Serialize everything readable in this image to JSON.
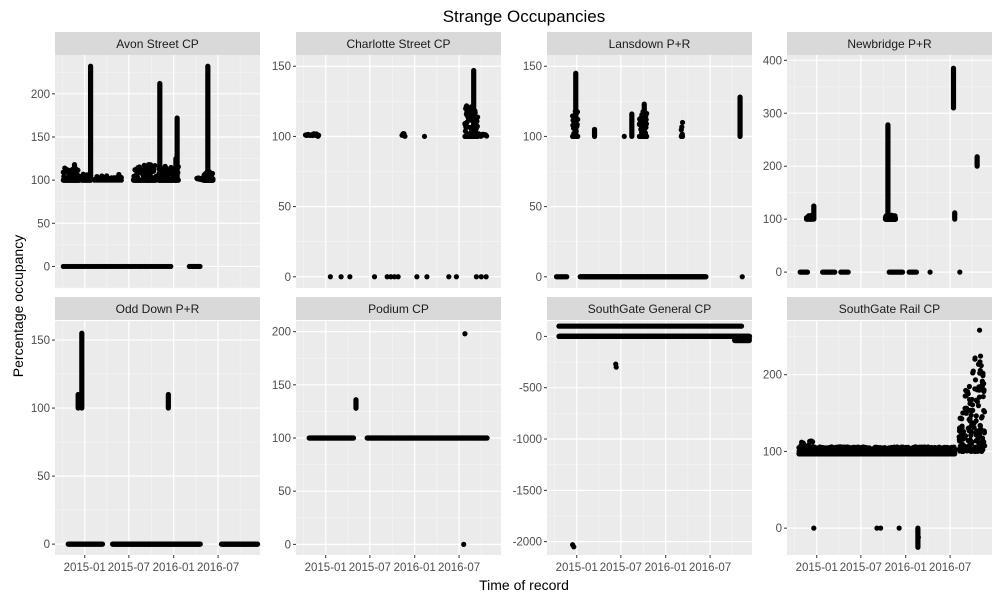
{
  "chart_data": {
    "type": "scatter",
    "title": "Strange Occupancies",
    "xlabel": "Time of record",
    "ylabel": "Percentage occupancy",
    "x_tick_labels": [
      "2015-01",
      "2015-07",
      "2016-01",
      "2016-07"
    ],
    "x_tick_values": [
      "2015-01-01",
      "2015-07-01",
      "2016-01-01",
      "2016-07-01"
    ],
    "xlim": [
      "2014-09-01",
      "2016-12-20"
    ],
    "grid": true,
    "facet_rows": 2,
    "facet_cols": 4,
    "colors": {
      "panel_bg": "#EBEBEB",
      "strip_bg": "#D9D9D9",
      "grid_major": "#FFFFFF",
      "grid_minor": "#F5F5F5",
      "point": "#000000"
    },
    "panels": [
      {
        "title": "Avon Street CP",
        "ylim": [
          -25,
          245
        ],
        "y_ticks": [
          0,
          50,
          100,
          150,
          200
        ],
        "segments": [
          {
            "x0": "2014-10-05",
            "x1": "2015-12-20",
            "y0": 0,
            "y1": 0,
            "step": 9
          },
          {
            "x0": "2016-03-05",
            "x1": "2016-04-20",
            "y0": 0,
            "y1": 0,
            "step": 4
          },
          {
            "x0": "2014-10-05",
            "x1": "2014-12-10",
            "y0": 100,
            "y1": 114,
            "step": 2
          },
          {
            "x0": "2014-12-20",
            "x1": "2015-01-25",
            "y0": 100,
            "y1": 107,
            "step": 3
          },
          {
            "x0": "2015-02-10",
            "x1": "2015-06-05",
            "y0": 100,
            "y1": 107,
            "step": 10
          },
          {
            "x0": "2015-07-20",
            "x1": "2015-10-20",
            "y0": 100,
            "y1": 118,
            "step": 2
          },
          {
            "x0": "2015-11-01",
            "x1": "2016-01-20",
            "y0": 100,
            "y1": 116,
            "step": 2
          },
          {
            "x0": "2016-04-05",
            "x1": "2016-05-01",
            "y0": 100,
            "y1": 103,
            "step": 3
          },
          {
            "x0": "2016-05-03",
            "x1": "2016-06-10",
            "y0": 100,
            "y1": 110,
            "step": 1
          }
        ],
        "spikes": [
          {
            "x": "2014-11-20",
            "y0": 100,
            "y1": 118
          },
          {
            "x": "2015-01-25",
            "y0": 100,
            "y1": 232
          },
          {
            "x": "2015-09-20",
            "y0": 100,
            "y1": 118
          },
          {
            "x": "2015-11-05",
            "y0": 100,
            "y1": 212
          },
          {
            "x": "2016-01-15",
            "y0": 100,
            "y1": 172
          },
          {
            "x": "2016-01-10",
            "y0": 100,
            "y1": 125
          },
          {
            "x": "2016-05-20",
            "y0": 100,
            "y1": 232
          }
        ]
      },
      {
        "title": "Charlotte Street CP",
        "ylim": [
          -8,
          158
        ],
        "y_ticks": [
          0,
          50,
          100,
          150
        ],
        "segments": [
          {
            "x0": "2014-10-10",
            "x1": "2014-12-05",
            "y0": 100,
            "y1": 102,
            "step": 3
          },
          {
            "x0": "2015-11-10",
            "x1": "2015-11-25",
            "y0": 100,
            "y1": 102,
            "step": 4
          },
          {
            "x0": "2016-07-25",
            "x1": "2016-09-15",
            "y0": 100,
            "y1": 122,
            "step": 1
          },
          {
            "x0": "2016-09-20",
            "x1": "2016-10-25",
            "y0": 100,
            "y1": 102,
            "step": 4
          }
        ],
        "points": [
          {
            "x": "2015-01-20",
            "y": 0
          },
          {
            "x": "2015-03-05",
            "y": 0
          },
          {
            "x": "2015-04-10",
            "y": 0
          },
          {
            "x": "2015-07-20",
            "y": 0
          },
          {
            "x": "2015-09-10",
            "y": 0
          },
          {
            "x": "2015-09-25",
            "y": 0
          },
          {
            "x": "2015-10-10",
            "y": 0
          },
          {
            "x": "2015-10-25",
            "y": 0
          },
          {
            "x": "2016-01-10",
            "y": 0
          },
          {
            "x": "2016-02-20",
            "y": 0
          },
          {
            "x": "2016-05-20",
            "y": 0
          },
          {
            "x": "2016-06-20",
            "y": 0
          },
          {
            "x": "2016-09-10",
            "y": 0
          },
          {
            "x": "2016-09-30",
            "y": 0
          },
          {
            "x": "2016-10-20",
            "y": 0
          },
          {
            "x": "2016-02-10",
            "y": 100
          }
        ],
        "spikes": [
          {
            "x": "2016-08-30",
            "y0": 100,
            "y1": 147
          }
        ]
      },
      {
        "title": "Lansdown P+R",
        "ylim": [
          -8,
          158
        ],
        "y_ticks": [
          0,
          50,
          100,
          150
        ],
        "segments": [
          {
            "x0": "2014-10-10",
            "x1": "2014-11-25",
            "y0": 0,
            "y1": 0,
            "step": 6
          },
          {
            "x0": "2015-01-15",
            "x1": "2016-06-15",
            "y0": 0,
            "y1": 0,
            "step": 3
          },
          {
            "x0": "2014-12-15",
            "x1": "2015-01-05",
            "y0": 100,
            "y1": 118,
            "step": 1
          },
          {
            "x0": "2015-09-15",
            "x1": "2015-10-15",
            "y0": 100,
            "y1": 118,
            "step": 1
          },
          {
            "x0": "2016-03-05",
            "x1": "2016-03-10",
            "y0": 100,
            "y1": 110,
            "step": 1
          }
        ],
        "points": [
          {
            "x": "2016-11-10",
            "y": 0
          },
          {
            "x": "2015-07-15",
            "y": 100
          }
        ],
        "spikes": [
          {
            "x": "2014-12-28",
            "y0": 100,
            "y1": 145
          },
          {
            "x": "2015-03-15",
            "y0": 100,
            "y1": 105
          },
          {
            "x": "2015-08-15",
            "y0": 100,
            "y1": 116
          },
          {
            "x": "2015-10-05",
            "y0": 100,
            "y1": 123
          },
          {
            "x": "2016-11-01",
            "y0": 100,
            "y1": 128
          }
        ]
      },
      {
        "title": "Newbridge P+R",
        "ylim": [
          -30,
          410
        ],
        "y_ticks": [
          0,
          100,
          200,
          300,
          400
        ],
        "segments": [
          {
            "x0": "2014-10-25",
            "x1": "2014-11-25",
            "y0": 0,
            "y1": 0,
            "step": 5
          },
          {
            "x0": "2015-01-25",
            "x1": "2015-03-20",
            "y0": 0,
            "y1": 0,
            "step": 5
          },
          {
            "x0": "2015-04-10",
            "x1": "2015-05-10",
            "y0": 0,
            "y1": 0,
            "step": 6
          },
          {
            "x0": "2015-10-25",
            "x1": "2015-12-20",
            "y0": 0,
            "y1": 0,
            "step": 5
          },
          {
            "x0": "2016-01-15",
            "x1": "2016-02-15",
            "y0": 0,
            "y1": 0,
            "step": 6
          },
          {
            "x0": "2014-11-20",
            "x1": "2014-12-15",
            "y0": 100,
            "y1": 107,
            "step": 3
          },
          {
            "x0": "2015-10-10",
            "x1": "2015-11-20",
            "y0": 100,
            "y1": 108,
            "step": 1
          }
        ],
        "points": [
          {
            "x": "2016-08-10",
            "y": 0
          },
          {
            "x": "2016-04-10",
            "y": 0
          }
        ],
        "spikes": [
          {
            "x": "2014-12-20",
            "y0": 100,
            "y1": 125
          },
          {
            "x": "2015-10-20",
            "y0": 100,
            "y1": 278
          },
          {
            "x": "2016-07-15",
            "y0": 310,
            "y1": 385
          },
          {
            "x": "2016-07-20",
            "y0": 100,
            "y1": 112
          },
          {
            "x": "2016-10-20",
            "y0": 200,
            "y1": 218
          }
        ]
      },
      {
        "title": "Odd Down P+R",
        "ylim": [
          -8,
          164
        ],
        "y_ticks": [
          0,
          50,
          100,
          150
        ],
        "segments": [
          {
            "x0": "2014-10-25",
            "x1": "2015-03-15",
            "y0": 0,
            "y1": 0,
            "step": 3
          },
          {
            "x0": "2015-04-25",
            "x1": "2016-04-20",
            "y0": 0,
            "y1": 0,
            "step": 2
          },
          {
            "x0": "2016-07-15",
            "x1": "2016-12-10",
            "y0": 0,
            "y1": 0,
            "step": 2
          }
        ],
        "spikes": [
          {
            "x": "2014-12-05",
            "y0": 100,
            "y1": 110
          },
          {
            "x": "2014-12-20",
            "y0": 100,
            "y1": 155
          },
          {
            "x": "2015-12-10",
            "y0": 100,
            "y1": 110
          }
        ]
      },
      {
        "title": "Podium CP",
        "ylim": [
          -10,
          210
        ],
        "y_ticks": [
          0,
          50,
          100,
          150,
          200
        ],
        "segments": [
          {
            "x0": "2014-10-25",
            "x1": "2015-04-25",
            "y0": 100,
            "y1": 100,
            "step": 2
          },
          {
            "x0": "2015-06-20",
            "x1": "2016-10-25",
            "y0": 100,
            "y1": 100,
            "step": 2
          }
        ],
        "points": [
          {
            "x": "2016-07-25",
            "y": 198
          },
          {
            "x": "2016-07-20",
            "y": 0
          }
        ],
        "spikes": [
          {
            "x": "2015-05-05",
            "y0": 128,
            "y1": 136
          }
        ]
      },
      {
        "title": "SouthGate General CP",
        "ylim": [
          -2130,
          150
        ],
        "y_ticks": [
          -2000,
          -1500,
          -1000,
          -500,
          0
        ],
        "segments": [
          {
            "x0": "2014-10-20",
            "x1": "2016-12-10",
            "y0": 0,
            "y1": 0,
            "step": 1
          },
          {
            "x0": "2014-10-20",
            "x1": "2016-11-10",
            "y0": 100,
            "y1": 100,
            "step": 7
          },
          {
            "x0": "2016-10-10",
            "x1": "2016-12-10",
            "y0": -40,
            "y1": -20,
            "step": 2
          }
        ],
        "points": [
          {
            "x": "2014-12-15",
            "y": -2030
          },
          {
            "x": "2014-12-20",
            "y": -2050
          },
          {
            "x": "2015-06-10",
            "y": -270
          },
          {
            "x": "2015-06-12",
            "y": -300
          }
        ]
      },
      {
        "title": "SouthGate Rail CP",
        "ylim": [
          -35,
          270
        ],
        "y_ticks": [
          0,
          100,
          200
        ],
        "segments": [
          {
            "x0": "2014-10-20",
            "x1": "2016-07-20",
            "y0": 97,
            "y1": 106,
            "step": 1
          },
          {
            "x0": "2014-10-25",
            "x1": "2014-12-20",
            "y0": 100,
            "y1": 114,
            "step": 3
          }
        ],
        "points": [
          {
            "x": "2014-12-20",
            "y": 0
          },
          {
            "x": "2015-09-05",
            "y": 0
          },
          {
            "x": "2015-09-20",
            "y": 0
          },
          {
            "x": "2015-12-05",
            "y": 0
          },
          {
            "x": "2016-02-20",
            "y": -5
          },
          {
            "x": "2016-02-22",
            "y": -12
          },
          {
            "x": "2016-10-30",
            "y": 258
          }
        ],
        "spikes": [
          {
            "x": "2016-02-20",
            "y0": -25,
            "y1": 0
          }
        ],
        "cloud": {
          "x0": "2016-08-05",
          "x1": "2016-11-20",
          "y_min": 100,
          "y_max": 228,
          "count": 170
        }
      }
    ]
  }
}
